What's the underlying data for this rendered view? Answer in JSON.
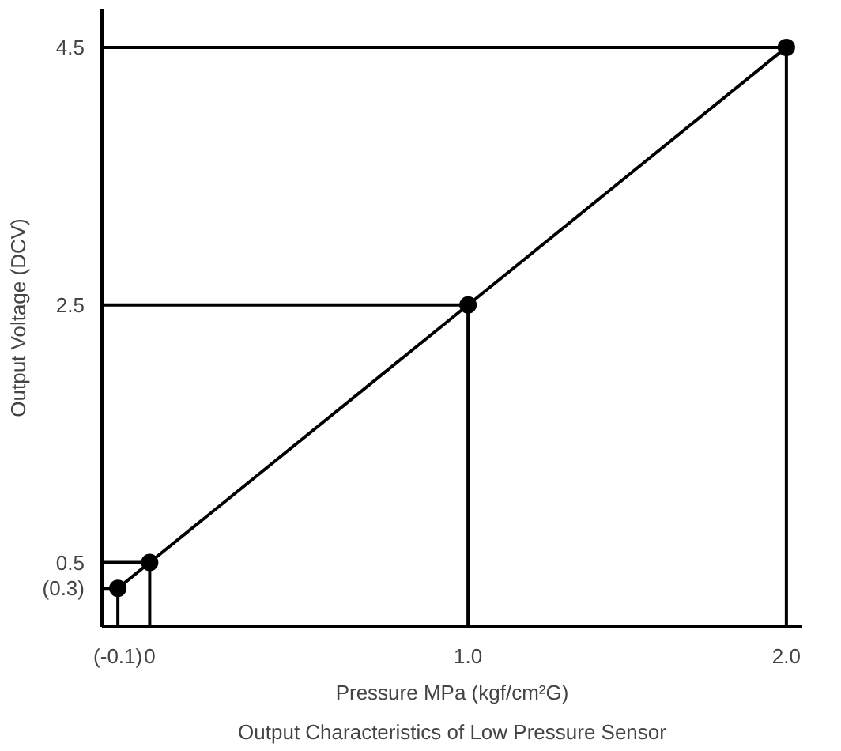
{
  "chart_data": {
    "type": "line",
    "xlabel": "Pressure MPa (kgf/cm²G)",
    "ylabel": "Output Voltage (DCV)",
    "annotations": [
      "Output Characteristics of Low Pressure Sensor"
    ],
    "x": [
      -0.1,
      0,
      1.0,
      2.0
    ],
    "series": [
      {
        "color": "#000000",
        "values": [
          0.3,
          0.5,
          2.5,
          4.5
        ]
      },
      {
        "color": "#000000",
        "marker": "none",
        "x": [
          -0.15,
          -0.1,
          -0.1,
          0,
          0,
          -0.15,
          -0.15,
          1.0,
          1.0,
          2.0,
          2.0,
          -0.15
        ],
        "values": [
          0.3,
          0.3,
          0,
          0,
          0.5,
          0.5,
          2.5,
          2.5,
          0,
          0,
          4.5,
          4.5
        ]
      }
    ],
    "xlim": [
      -0.15,
      2.05
    ],
    "ylim": [
      0,
      4.8
    ],
    "xticks": [
      {
        "value": -0.1,
        "label": "(-0.1)"
      },
      0,
      {
        "value": 1.0,
        "label": "1.0"
      },
      {
        "value": 2.0,
        "label": "2.0"
      }
    ],
    "yticks": [
      {
        "value": 0.3,
        "label": "(0.3)"
      },
      0.5,
      2.5,
      4.5
    ],
    "grid": false,
    "marker": "circle",
    "line_style": "solid"
  }
}
